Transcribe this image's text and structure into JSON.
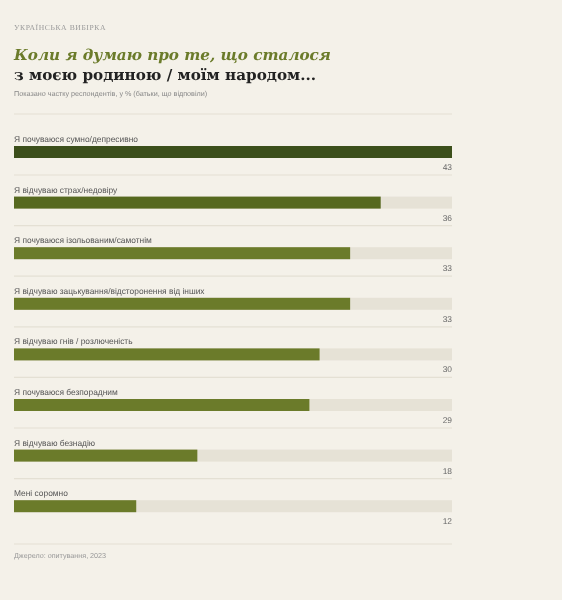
{
  "chart_data": {
    "type": "bar",
    "orientation": "horizontal",
    "title": "Коли я думаю про те, що сталося",
    "subtitle": "з моєю родиною / моїм народом...",
    "annotations": [
      "УКРАЇНСЬКА ВИБІРКА",
      "Показано частку респондентів, у % (батьки, що відповіли)",
      "Джерело: опитування, 2023"
    ],
    "categories": [
      "Я почуваюся сумно/депресивно",
      "Я відчуваю страх/недовіру",
      "Я почуваюся ізольованим/самотнім",
      "Я відчуваю зацькування/відсторонення від інших",
      "Я відчуваю гнів / розлюченість",
      "Я почуваюся безпорадним",
      "Я відчуваю безнадію",
      "Мені соромно"
    ],
    "values": [
      43,
      36,
      33,
      33,
      30,
      29,
      18,
      12
    ],
    "colors": [
      "#3c4f1b",
      "#56691f",
      "#6b7b2a",
      "#6b7b2a",
      "#6b7b2a",
      "#6b7b2a",
      "#6b7b2a",
      "#6b7b2a"
    ],
    "xlim": [
      0,
      43
    ],
    "data_labels": true
  }
}
